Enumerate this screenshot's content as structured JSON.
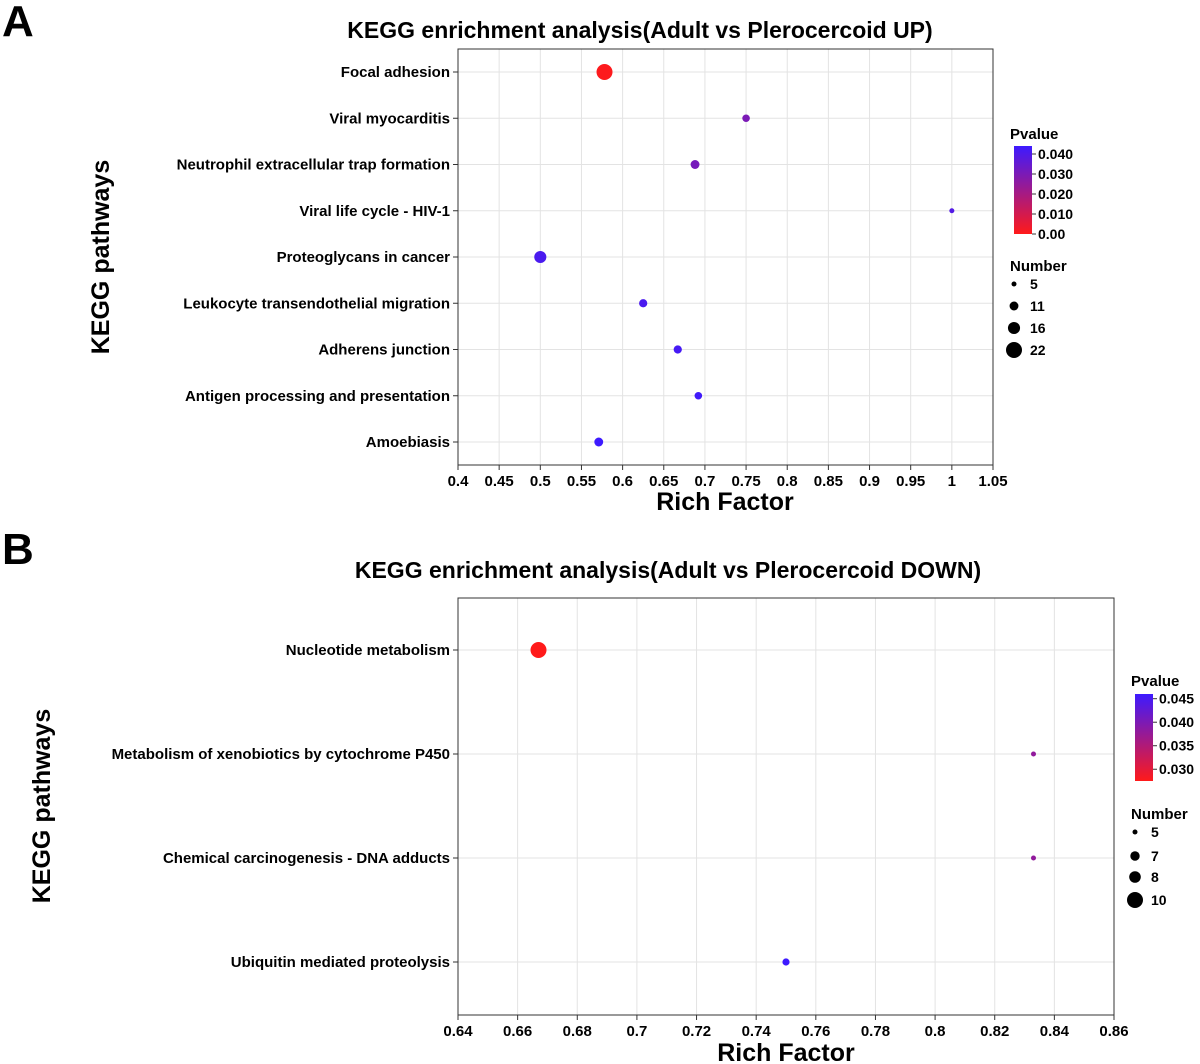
{
  "chart_data": [
    {
      "panel": "A",
      "type": "scatter",
      "title": "KEGG enrichment analysis(Adult vs Plerocercoid UP)",
      "xlabel": "Rich Factor",
      "ylabel": "KEGG pathways",
      "xlim": [
        0.4,
        1.05
      ],
      "xticks": [
        "0.4",
        "0.45",
        "0.5",
        "0.55",
        "0.6",
        "0.65",
        "0.7",
        "0.75",
        "0.8",
        "0.85",
        "0.9",
        "0.95",
        "1",
        "1.05"
      ],
      "categories": [
        "Focal adhesion",
        "Viral myocarditis",
        "Neutrophil extracellular trap formation",
        "Viral life cycle - HIV-1",
        "Proteoglycans in cancer",
        "Leukocyte transendothelial migration",
        "Adherens junction",
        "Antigen processing and presentation",
        "Amoebiasis"
      ],
      "points": [
        {
          "pathway": "Focal adhesion",
          "rich_factor": 0.578,
          "number": 22,
          "pvalue": 0.0005
        },
        {
          "pathway": "Viral myocarditis",
          "rich_factor": 0.75,
          "number": 9,
          "pvalue": 0.03
        },
        {
          "pathway": "Neutrophil extracellular trap formation",
          "rich_factor": 0.688,
          "number": 11,
          "pvalue": 0.031
        },
        {
          "pathway": "Viral life cycle - HIV-1",
          "rich_factor": 1.0,
          "number": 5,
          "pvalue": 0.039
        },
        {
          "pathway": "Proteoglycans in cancer",
          "rich_factor": 0.5,
          "number": 16,
          "pvalue": 0.041
        },
        {
          "pathway": "Leukocyte transendothelial migration",
          "rich_factor": 0.625,
          "number": 10,
          "pvalue": 0.041
        },
        {
          "pathway": "Adherens junction",
          "rich_factor": 0.667,
          "number": 10,
          "pvalue": 0.042
        },
        {
          "pathway": "Antigen processing and presentation",
          "rich_factor": 0.692,
          "number": 9,
          "pvalue": 0.043
        },
        {
          "pathway": "Amoebiasis",
          "rich_factor": 0.571,
          "number": 11,
          "pvalue": 0.044
        }
      ],
      "pvalue_legend": {
        "title": "Pvalue",
        "range": [
          0.0,
          0.044
        ],
        "ticks": [
          "0.040",
          "0.030",
          "0.020",
          "0.010",
          "0.00"
        ],
        "tick_values": [
          0.04,
          0.03,
          0.02,
          0.01,
          0.0
        ],
        "low_color": "#ff1a1a",
        "high_color": "#3d1aff"
      },
      "size_legend": {
        "title": "Number",
        "range": [
          5,
          22
        ],
        "entries": [
          "5",
          "11",
          "16",
          "22"
        ]
      }
    },
    {
      "panel": "B",
      "type": "scatter",
      "title": "KEGG enrichment analysis(Adult vs Plerocercoid DOWN)",
      "xlabel": "Rich Factor",
      "ylabel": "KEGG pathways",
      "xlim": [
        0.64,
        0.86
      ],
      "xticks": [
        "0.64",
        "0.66",
        "0.68",
        "0.7",
        "0.72",
        "0.74",
        "0.76",
        "0.78",
        "0.8",
        "0.82",
        "0.84",
        "0.86"
      ],
      "categories": [
        "Nucleotide metabolism",
        "Metabolism of xenobiotics by cytochrome P450",
        "Chemical carcinogenesis - DNA adducts",
        "Ubiquitin mediated proteolysis"
      ],
      "points": [
        {
          "pathway": "Nucleotide metabolism",
          "rich_factor": 0.667,
          "number": 10,
          "pvalue": 0.0275
        },
        {
          "pathway": "Metabolism of xenobiotics by cytochrome P450",
          "rich_factor": 0.833,
          "number": 5,
          "pvalue": 0.038
        },
        {
          "pathway": "Chemical carcinogenesis - DNA adducts",
          "rich_factor": 0.833,
          "number": 5,
          "pvalue": 0.038
        },
        {
          "pathway": "Ubiquitin mediated proteolysis",
          "rich_factor": 0.75,
          "number": 6,
          "pvalue": 0.046
        }
      ],
      "pvalue_legend": {
        "title": "Pvalue",
        "range": [
          0.0275,
          0.046
        ],
        "ticks": [
          "0.045",
          "0.040",
          "0.035",
          "0.030"
        ],
        "tick_values": [
          0.045,
          0.04,
          0.035,
          0.03
        ],
        "low_color": "#ff1a1a",
        "high_color": "#3d1aff"
      },
      "size_legend": {
        "title": "Number",
        "range": [
          5,
          10
        ],
        "entries": [
          "5",
          "7",
          "8",
          "10"
        ]
      }
    }
  ]
}
